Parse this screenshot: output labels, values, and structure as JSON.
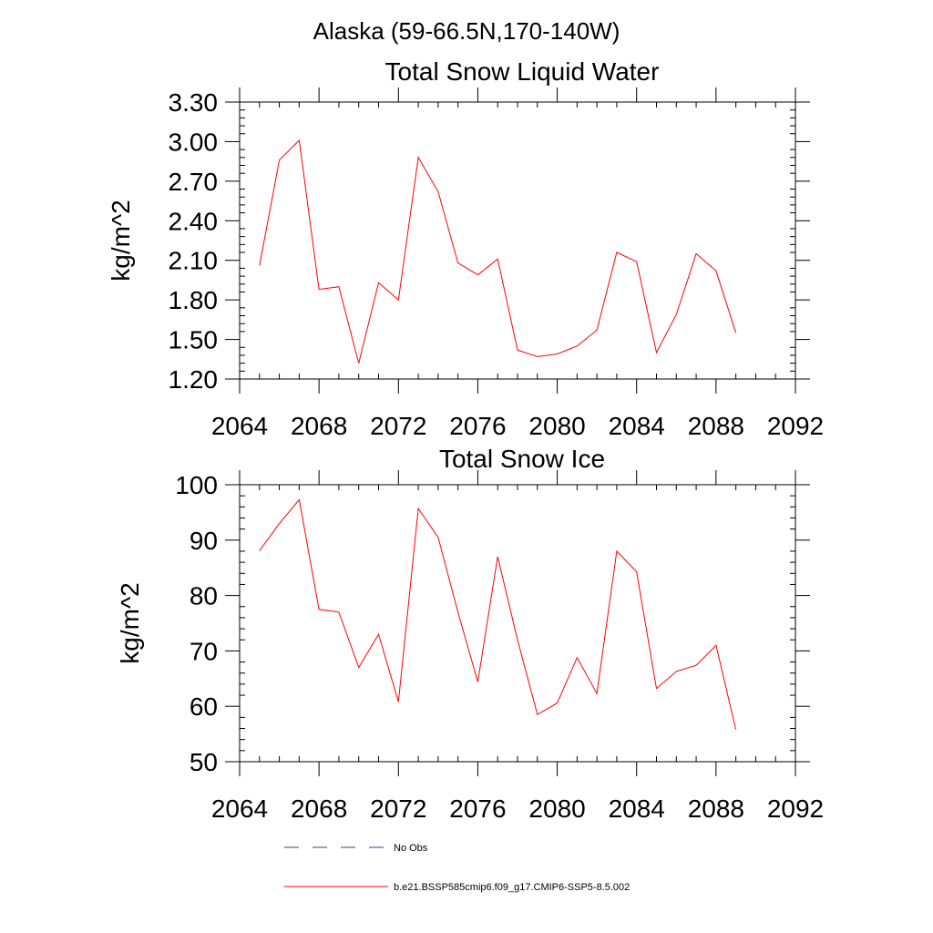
{
  "page_title": "Alaska (59-66.5N,170-140W)",
  "chart_data": [
    {
      "type": "line",
      "title": "Total Snow Liquid Water",
      "xlabel": "",
      "ylabel": "kg/m^2",
      "xlim": [
        2064,
        2092
      ],
      "ylim": [
        1.2,
        3.3
      ],
      "xticks": [
        2064,
        2068,
        2072,
        2076,
        2080,
        2084,
        2088,
        2092
      ],
      "xtick_labels": [
        "2064",
        "2068",
        "2072",
        "2076",
        "2080",
        "2084",
        "2088",
        "2092"
      ],
      "yticks": [
        1.2,
        1.5,
        1.8,
        2.1,
        2.4,
        2.7,
        3.0,
        3.3
      ],
      "ytick_labels": [
        "1.20",
        "1.50",
        "1.80",
        "2.10",
        "2.40",
        "2.70",
        "3.00",
        "3.30"
      ],
      "grid": false,
      "series": [
        {
          "name": "b.e21.BSSP585cmip6.f09_g17.CMIP6-SSP5-8.5.002",
          "color": "#ff0000",
          "x": [
            2065,
            2066,
            2067,
            2068,
            2069,
            2070,
            2071,
            2072,
            2073,
            2074,
            2075,
            2076,
            2077,
            2078,
            2079,
            2080,
            2081,
            2082,
            2083,
            2084,
            2085,
            2086,
            2087,
            2088,
            2089
          ],
          "y": [
            2.06,
            2.86,
            3.01,
            1.88,
            1.9,
            1.32,
            1.93,
            1.8,
            2.88,
            2.62,
            2.08,
            1.99,
            2.11,
            1.42,
            1.37,
            1.39,
            1.45,
            1.57,
            2.16,
            2.09,
            1.4,
            1.69,
            2.15,
            2.02,
            1.55
          ]
        }
      ]
    },
    {
      "type": "line",
      "title": "Total Snow Ice",
      "xlabel": "",
      "ylabel": "kg/m^2",
      "xlim": [
        2064,
        2092
      ],
      "ylim": [
        50,
        100
      ],
      "xticks": [
        2064,
        2068,
        2072,
        2076,
        2080,
        2084,
        2088,
        2092
      ],
      "xtick_labels": [
        "2064",
        "2068",
        "2072",
        "2076",
        "2080",
        "2084",
        "2088",
        "2092"
      ],
      "yticks": [
        50,
        60,
        70,
        80,
        90,
        100
      ],
      "ytick_labels": [
        "50",
        "60",
        "70",
        "80",
        "90",
        "100"
      ],
      "grid": false,
      "series": [
        {
          "name": "b.e21.BSSP585cmip6.f09_g17.CMIP6-SSP5-8.5.002",
          "color": "#ff0000",
          "x": [
            2065,
            2066,
            2067,
            2068,
            2069,
            2070,
            2071,
            2072,
            2073,
            2074,
            2075,
            2076,
            2077,
            2078,
            2079,
            2080,
            2081,
            2082,
            2083,
            2084,
            2085,
            2086,
            2087,
            2088,
            2089
          ],
          "y": [
            88.1,
            93.0,
            97.3,
            77.5,
            77.0,
            67.0,
            73.0,
            60.8,
            95.7,
            90.5,
            77.0,
            64.4,
            87.0,
            72.0,
            58.5,
            60.6,
            68.8,
            62.3,
            88.0,
            84.3,
            63.2,
            66.3,
            67.4,
            71.0,
            55.8
          ]
        }
      ]
    }
  ],
  "legend": {
    "items": [
      {
        "label": "No Obs",
        "style": "dashed",
        "color": "#3b3b8f"
      },
      {
        "label": "b.e21.BSSP585cmip6.f09_g17.CMIP6-SSP5-8.5.002",
        "style": "solid",
        "color": "#ff0000"
      }
    ]
  }
}
